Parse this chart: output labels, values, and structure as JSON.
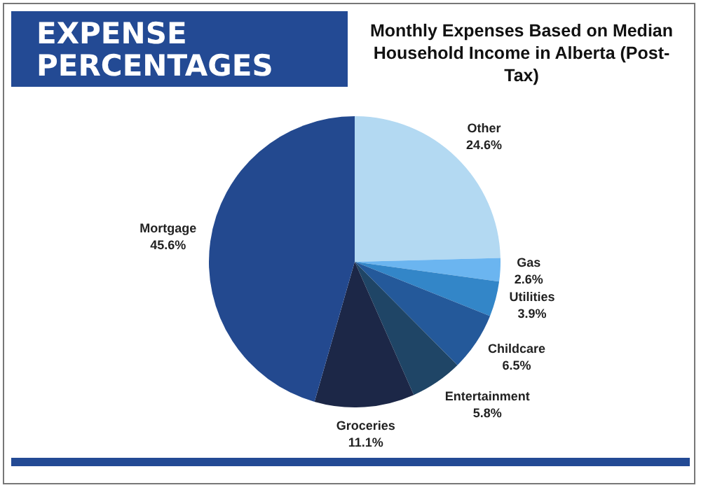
{
  "chart_data": {
    "type": "pie",
    "title": "EXPENSE PERCENTAGES",
    "subtitle": "Monthly Expenses Based on Median Household Income in Alberta (Post-Tax)",
    "categories": [
      "Other",
      "Gas",
      "Utilities",
      "Childcare",
      "Entertainment",
      "Groceries",
      "Mortgage"
    ],
    "values": [
      24.6,
      2.6,
      3.9,
      6.5,
      5.8,
      11.1,
      45.6
    ],
    "colors": [
      "#b3d9f2",
      "#6bb5f0",
      "#3386c8",
      "#24599a",
      "#1f4566",
      "#1c2747",
      "#23498f"
    ],
    "value_labels": [
      "24.6%",
      "2.6%",
      "3.9%",
      "6.5%",
      "5.8%",
      "11.1%",
      "45.6%"
    ],
    "legend": false
  }
}
